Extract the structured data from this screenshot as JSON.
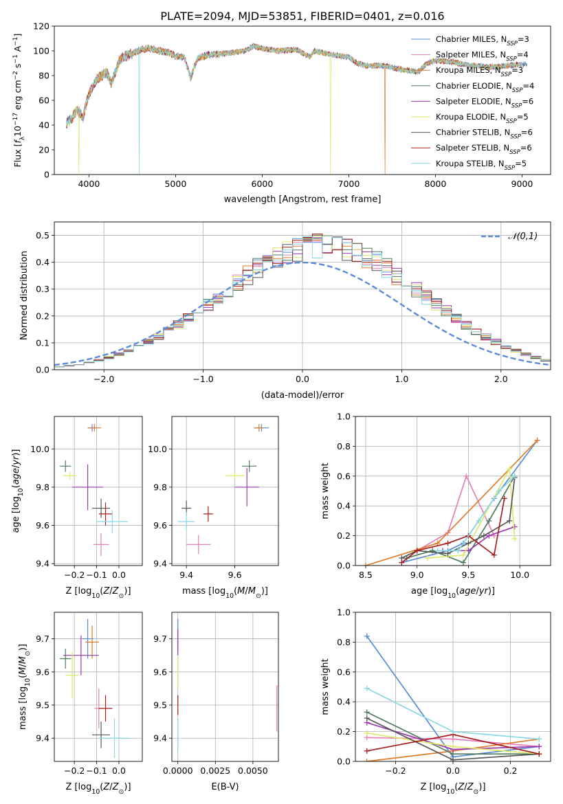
{
  "figure_title": "PLATE=2094, MJD=53851, FIBERID=0401, z=0.016",
  "colors": {
    "Chabrier MILES": "#5b8ad6",
    "Salpeter MILES": "#e37fb6",
    "Kroupa MILES": "#e07b2a",
    "Chabrier ELODIE": "#4e7a5b",
    "Salpeter ELODIE": "#9a38b0",
    "Kroupa ELODIE": "#dde86a",
    "Chabrier STELIB": "#555555",
    "Salpeter STELIB": "#a51c1c",
    "Kroupa STELIB": "#86d8e2"
  },
  "chart_data": [
    {
      "type": "line",
      "title": "PLATE=2094, MJD=53851, FIBERID=0401, z=0.016",
      "xlabel": "wavelength [Angstrom, rest frame]",
      "ylabel": "Flux [fλ10⁻¹⁷ erg cm⁻² s⁻¹ A⁻¹]",
      "xlim": [
        3600,
        9330
      ],
      "ylim": [
        0,
        120
      ],
      "xticks": [
        4000,
        5000,
        6000,
        7000,
        8000,
        9000
      ],
      "yticks": [
        0,
        20,
        40,
        60,
        80,
        100,
        120
      ],
      "grid": false,
      "legend_position": "top-right",
      "legend": [
        "Chabrier MILES, N_SSP=3",
        "Salpeter MILES, N_SSP=4",
        "Kroupa MILES, N_SSP=3",
        "Chabrier ELODIE, N_SSP=4",
        "Salpeter ELODIE, N_SSP=6",
        "Kroupa ELODIE, N_SSP=5",
        "Chabrier STELIB, N_SSP=6",
        "Salpeter STELIB, N_SSP=6",
        "Kroupa STELIB, N_SSP=5"
      ],
      "envelope": {
        "x": [
          3750,
          3800,
          3860,
          3900,
          3930,
          3960,
          4000,
          4050,
          4100,
          4150,
          4200,
          4260,
          4300,
          4350,
          4400,
          4500,
          4600,
          4700,
          4800,
          4900,
          5000,
          5100,
          5175,
          5250,
          5400,
          5600,
          5800,
          5900,
          6000,
          6200,
          6400,
          6550,
          6600,
          6800,
          6900,
          7000,
          7100,
          7200,
          7400,
          7600,
          7700,
          7800,
          7900,
          8000,
          8200,
          8400,
          8500,
          8600,
          8700,
          8800,
          9000
        ],
        "y": [
          42,
          45,
          52,
          50,
          45,
          55,
          65,
          72,
          78,
          80,
          83,
          73,
          82,
          92,
          95,
          98,
          101,
          102,
          100,
          99,
          96,
          95,
          78,
          94,
          97,
          98,
          100,
          104,
          102,
          100,
          101,
          95,
          100,
          97,
          96,
          95,
          90,
          88,
          88,
          85,
          84,
          83,
          90,
          92,
          91,
          88,
          88,
          87,
          87,
          88,
          89
        ]
      },
      "dropouts": [
        {
          "wavelength": 3885,
          "series": "Kroupa ELODIE",
          "to": 0
        },
        {
          "wavelength": 4580,
          "series": "Kroupa STELIB",
          "to": 0
        },
        {
          "wavelength": 6790,
          "series": "Kroupa ELODIE",
          "to": 0
        },
        {
          "wavelength": 7420,
          "series": "Kroupa MILES",
          "to": 0
        }
      ]
    },
    {
      "type": "line",
      "xlabel": "(data-model)/error",
      "ylabel": "Normed distribution",
      "xlim": [
        -2.5,
        2.5
      ],
      "ylim": [
        0,
        0.55
      ],
      "xticks": [
        -2,
        -1,
        0,
        1,
        2
      ],
      "yticks": [
        0.0,
        0.1,
        0.2,
        0.3,
        0.4,
        0.5
      ],
      "grid": true,
      "legend_position": "top-right",
      "legend": [
        "𝒩(0,1)"
      ],
      "bin_width": 0.1,
      "histogram_envelope": [
        0.012,
        0.015,
        0.02,
        0.028,
        0.036,
        0.046,
        0.058,
        0.072,
        0.088,
        0.106,
        0.125,
        0.147,
        0.17,
        0.195,
        0.221,
        0.248,
        0.276,
        0.304,
        0.332,
        0.359,
        0.384,
        0.408,
        0.428,
        0.445,
        0.458,
        0.466,
        0.47,
        0.47,
        0.466,
        0.458,
        0.445,
        0.428,
        0.408,
        0.384,
        0.359,
        0.332,
        0.304,
        0.276,
        0.248,
        0.221,
        0.195,
        0.17,
        0.147,
        0.125,
        0.106,
        0.088,
        0.072,
        0.058,
        0.046,
        0.036
      ],
      "reference_curve": "normal(0,1) pdf"
    },
    {
      "type": "scatter",
      "xlabel": "Z [log10(Z/Z⊙)]",
      "ylabel": "age  [log10(age/yr)]",
      "xlim": [
        -0.29,
        0.105
      ],
      "ylim": [
        9.39,
        10.17
      ],
      "xticks": [
        -0.2,
        -0.1,
        0.0
      ],
      "yticks": [
        9.4,
        9.6,
        9.8,
        10.0
      ],
      "grid": true,
      "points": [
        {
          "series": "Chabrier MILES",
          "x": -0.12,
          "y": 10.11,
          "xerr": 0.02,
          "yerr": 0.02
        },
        {
          "series": "Kroupa MILES",
          "x": -0.11,
          "y": 10.11,
          "xerr": 0.03,
          "yerr": 0.02
        },
        {
          "series": "Chabrier ELODIE",
          "x": -0.24,
          "y": 9.91,
          "xerr": 0.025,
          "yerr": 0.03
        },
        {
          "series": "Kroupa ELODIE",
          "x": -0.22,
          "y": 9.86,
          "xerr": 0.03,
          "yerr": 0.02
        },
        {
          "series": "Salpeter ELODIE",
          "x": -0.14,
          "y": 9.8,
          "xerr": 0.07,
          "yerr": 0.12
        },
        {
          "series": "Chabrier STELIB",
          "x": -0.08,
          "y": 9.69,
          "xerr": 0.04,
          "yerr": 0.05
        },
        {
          "series": "Salpeter STELIB",
          "x": -0.06,
          "y": 9.66,
          "xerr": 0.03,
          "yerr": 0.06
        },
        {
          "series": "Kroupa STELIB",
          "x": -0.03,
          "y": 9.62,
          "xerr": 0.07,
          "yerr": 0.06
        },
        {
          "series": "Salpeter MILES",
          "x": -0.08,
          "y": 9.5,
          "xerr": 0.035,
          "yerr": 0.06
        }
      ]
    },
    {
      "type": "scatter",
      "xlabel": "mass [log10(M/M⊙)]",
      "ylabel": "",
      "xlim": [
        9.34,
        9.78
      ],
      "ylim": [
        9.39,
        10.17
      ],
      "xticks": [
        9.4,
        9.6
      ],
      "yticks": [
        9.4,
        9.6,
        9.8,
        10.0
      ],
      "grid": true,
      "points": [
        {
          "series": "Chabrier MILES",
          "x": 9.71,
          "y": 10.11,
          "xerr": 0.03,
          "yerr": 0.02
        },
        {
          "series": "Kroupa MILES",
          "x": 9.7,
          "y": 10.11,
          "xerr": 0.02,
          "yerr": 0.02
        },
        {
          "series": "Chabrier ELODIE",
          "x": 9.66,
          "y": 9.91,
          "xerr": 0.03,
          "yerr": 0.03
        },
        {
          "series": "Kroupa ELODIE",
          "x": 9.6,
          "y": 9.86,
          "xerr": 0.04,
          "yerr": 0.02
        },
        {
          "series": "Salpeter ELODIE",
          "x": 9.65,
          "y": 9.8,
          "xerr": 0.05,
          "yerr": 0.1
        },
        {
          "series": "Chabrier STELIB",
          "x": 9.4,
          "y": 9.69,
          "xerr": 0.02,
          "yerr": 0.04
        },
        {
          "series": "Salpeter STELIB",
          "x": 9.49,
          "y": 9.66,
          "xerr": 0.02,
          "yerr": 0.04
        },
        {
          "series": "Kroupa STELIB",
          "x": 9.4,
          "y": 9.62,
          "xerr": 0.035,
          "yerr": 0.05
        },
        {
          "series": "Salpeter MILES",
          "x": 9.45,
          "y": 9.5,
          "xerr": 0.05,
          "yerr": 0.05
        }
      ]
    },
    {
      "type": "line",
      "xlabel": "age  [log10(age/yr)]",
      "ylabel": "mass weight",
      "xlim": [
        8.4,
        10.3
      ],
      "ylim": [
        0,
        1.0
      ],
      "xticks": [
        8.5,
        9.0,
        9.5,
        10.0
      ],
      "yticks": [
        0.0,
        0.2,
        0.4,
        0.6,
        0.8,
        1.0
      ],
      "grid": true,
      "series": [
        {
          "series": "Chabrier MILES",
          "x": [
            8.85,
            9.3,
            9.45,
            9.75,
            10.17
          ],
          "y": [
            0.02,
            0.1,
            0.15,
            0.45,
            0.84
          ]
        },
        {
          "series": "Salpeter MILES",
          "x": [
            9.0,
            9.3,
            9.48,
            9.75
          ],
          "y": [
            0.1,
            0.22,
            0.6,
            0.2
          ]
        },
        {
          "series": "Kroupa MILES",
          "x": [
            8.5,
            9.2,
            10.17
          ],
          "y": [
            0.0,
            0.15,
            0.84
          ]
        },
        {
          "series": "Chabrier ELODIE",
          "x": [
            8.9,
            9.15,
            9.45,
            9.7,
            9.95
          ],
          "y": [
            0.05,
            0.1,
            0.02,
            0.3,
            0.6
          ]
        },
        {
          "series": "Salpeter ELODIE",
          "x": [
            9.25,
            9.5,
            9.7,
            9.95
          ],
          "y": [
            0.1,
            0.1,
            0.2,
            0.26
          ]
        },
        {
          "series": "Kroupa ELODIE",
          "x": [
            9.1,
            9.45,
            9.9,
            9.95
          ],
          "y": [
            0.05,
            0.07,
            0.65,
            0.18
          ]
        },
        {
          "series": "Chabrier STELIB",
          "x": [
            8.85,
            9.0,
            9.3,
            9.5,
            9.65,
            9.9,
            9.95
          ],
          "y": [
            0.05,
            0.1,
            0.08,
            0.15,
            0.2,
            0.3,
            0.59
          ]
        },
        {
          "series": "Salpeter STELIB",
          "x": [
            8.85,
            9.0,
            9.3,
            9.5,
            9.75,
            9.85
          ],
          "y": [
            0.02,
            0.1,
            0.15,
            0.2,
            0.07,
            0.45
          ]
        },
        {
          "series": "Kroupa STELIB",
          "x": [
            9.2,
            9.4,
            9.6,
            9.8,
            9.95
          ],
          "y": [
            0.1,
            0.1,
            0.3,
            0.5,
            0.6
          ]
        }
      ]
    },
    {
      "type": "scatter",
      "xlabel": "Z [log10(Z/Z⊙)]",
      "ylabel": "mass [log10(M/M⊙)]",
      "xlim": [
        -0.29,
        0.105
      ],
      "ylim": [
        9.33,
        9.78
      ],
      "xticks": [
        -0.2,
        -0.1,
        0.0
      ],
      "yticks": [
        9.4,
        9.5,
        9.6,
        9.7
      ],
      "grid": true,
      "points": [
        {
          "series": "Chabrier MILES",
          "x": -0.14,
          "y": 9.7,
          "xerr": 0.025,
          "yerr": 0.06
        },
        {
          "series": "Kroupa MILES",
          "x": -0.12,
          "y": 9.69,
          "xerr": 0.03,
          "yerr": 0.05
        },
        {
          "series": "Chabrier ELODIE",
          "x": -0.24,
          "y": 9.64,
          "xerr": 0.025,
          "yerr": 0.03
        },
        {
          "series": "Salpeter ELODIE",
          "x": -0.17,
          "y": 9.65,
          "xerr": 0.08,
          "yerr": 0.06
        },
        {
          "series": "Kroupa ELODIE",
          "x": -0.21,
          "y": 9.59,
          "xerr": 0.03,
          "yerr": 0.07
        },
        {
          "series": "Salpeter MILES",
          "x": -0.09,
          "y": 9.49,
          "xerr": 0.02,
          "yerr": 0.06
        },
        {
          "series": "Salpeter STELIB",
          "x": -0.06,
          "y": 9.49,
          "xerr": 0.03,
          "yerr": 0.04
        },
        {
          "series": "Chabrier STELIB",
          "x": -0.08,
          "y": 9.41,
          "xerr": 0.04,
          "yerr": 0.04
        },
        {
          "series": "Kroupa STELIB",
          "x": -0.02,
          "y": 9.4,
          "xerr": 0.07,
          "yerr": 0.06
        }
      ]
    },
    {
      "type": "scatter",
      "xlabel": "E(B-V)",
      "ylabel": "",
      "xlim": [
        -0.0004,
        0.0067
      ],
      "ylim": [
        9.33,
        9.78
      ],
      "xticks": [
        0.0,
        0.0025,
        0.005
      ],
      "xtick_labels": [
        "0.0000",
        "0.0025",
        "0.0050"
      ],
      "yticks": [
        9.4,
        9.5,
        9.6,
        9.7
      ],
      "grid": true,
      "points": [
        {
          "series": "Chabrier MILES",
          "x": 0.0,
          "y": 9.71,
          "xerr": 2e-05,
          "yerr": 0.05
        },
        {
          "series": "Salpeter ELODIE",
          "x": 0.0,
          "y": 9.69,
          "xerr": 2e-05,
          "yerr": 0.04
        },
        {
          "series": "Kroupa ELODIE",
          "x": 0.0,
          "y": 9.6,
          "xerr": 2e-05,
          "yerr": 0.05
        },
        {
          "series": "Salpeter STELIB",
          "x": 0.0,
          "y": 9.5,
          "xerr": 2e-05,
          "yerr": 0.03
        },
        {
          "series": "Kroupa STELIB",
          "x": 0.0,
          "y": 9.41,
          "xerr": 2e-05,
          "yerr": 0.05
        },
        {
          "series": "Salpeter MILES",
          "x": 0.0066,
          "y": 9.49,
          "xerr": 2e-05,
          "yerr": 0.07
        }
      ]
    },
    {
      "type": "line",
      "xlabel": "Z [log10(Z/Z⊙)]",
      "ylabel": "mass weight",
      "xlim": [
        -0.34,
        0.34
      ],
      "ylim": [
        0,
        1.0
      ],
      "xticks": [
        -0.2,
        0.0,
        0.2
      ],
      "yticks": [
        0.0,
        0.2,
        0.4,
        0.6,
        0.8,
        1.0
      ],
      "grid": true,
      "series": [
        {
          "series": "Chabrier MILES",
          "x": [
            -0.3,
            0.0,
            0.3
          ],
          "y": [
            0.84,
            0.03,
            0.1
          ]
        },
        {
          "series": "Salpeter MILES",
          "x": [
            -0.3,
            0.0,
            0.3
          ],
          "y": [
            0.16,
            0.15,
            0.1
          ]
        },
        {
          "series": "Kroupa MILES",
          "x": [
            -0.3,
            0.0,
            0.3
          ],
          "y": [
            0.0,
            0.07,
            0.15
          ]
        },
        {
          "series": "Chabrier ELODIE",
          "x": [
            -0.3,
            0.0,
            0.3
          ],
          "y": [
            0.33,
            0.05,
            0.05
          ]
        },
        {
          "series": "Salpeter ELODIE",
          "x": [
            -0.3,
            0.0,
            0.3
          ],
          "y": [
            0.26,
            0.08,
            0.1
          ]
        },
        {
          "series": "Kroupa ELODIE",
          "x": [
            -0.3,
            0.0,
            0.3
          ],
          "y": [
            0.19,
            0.1,
            0.05
          ]
        },
        {
          "series": "Chabrier STELIB",
          "x": [
            -0.3,
            0.0,
            0.3
          ],
          "y": [
            0.29,
            0.01,
            0.05
          ]
        },
        {
          "series": "Salpeter STELIB",
          "x": [
            -0.3,
            0.0,
            0.3
          ],
          "y": [
            0.07,
            0.18,
            0.05
          ]
        },
        {
          "series": "Kroupa STELIB",
          "x": [
            -0.3,
            0.0,
            0.3
          ],
          "y": [
            0.49,
            0.2,
            0.15
          ]
        }
      ]
    }
  ]
}
